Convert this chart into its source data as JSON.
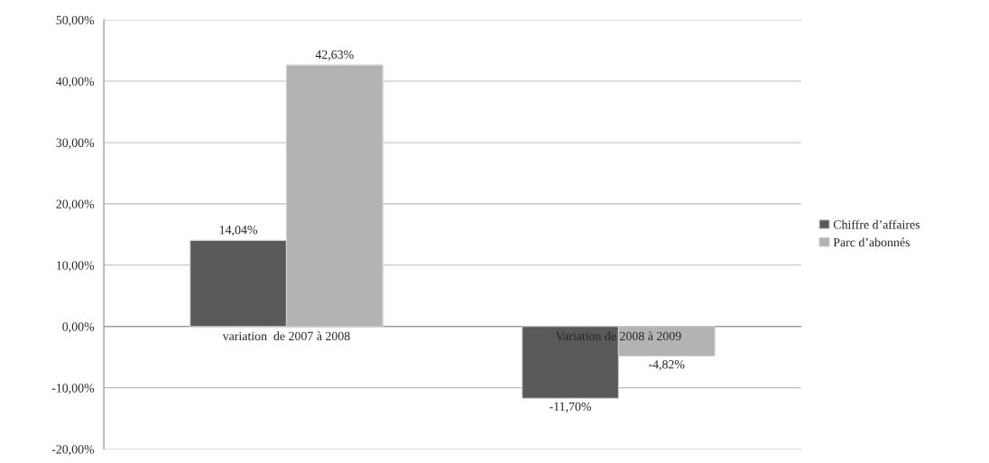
{
  "chart_data": {
    "type": "bar",
    "categories": [
      "variation  de 2007 à 2008",
      "Variation de 2008 à 2009"
    ],
    "series": [
      {
        "name": "Chiffre d’affaires",
        "color": "#595959",
        "values": [
          14.04,
          -11.7
        ],
        "value_labels": [
          "14,04%",
          "-11,70%"
        ]
      },
      {
        "name": "Parc d’abonnés",
        "color": "#b3b3b3",
        "values": [
          42.63,
          -4.82
        ],
        "value_labels": [
          "42,63%",
          "-4,82%"
        ]
      }
    ],
    "ylim": [
      -20,
      50
    ],
    "yticks": [
      {
        "value": -20,
        "label": "-20,00%"
      },
      {
        "value": -10,
        "label": "-10,00%"
      },
      {
        "value": 0,
        "label": "0,00%"
      },
      {
        "value": 10,
        "label": "10,00%"
      },
      {
        "value": 20,
        "label": "20,00%"
      },
      {
        "value": 30,
        "label": "30,00%"
      },
      {
        "value": 40,
        "label": "40,00%"
      },
      {
        "value": 50,
        "label": "50,00%"
      }
    ],
    "grid": "y",
    "legend": "right"
  }
}
